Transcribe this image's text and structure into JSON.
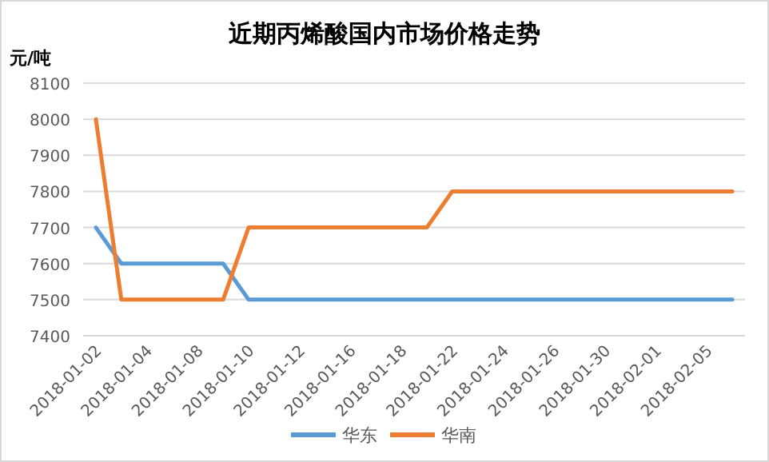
{
  "chart_data": {
    "type": "line",
    "title": "近期丙烯酸国内市场价格走势",
    "ylabel": "元/吨",
    "categories": [
      "2018-01-02",
      null,
      "2018-01-04",
      null,
      "2018-01-08",
      null,
      "2018-01-10",
      null,
      "2018-01-12",
      null,
      "2018-01-16",
      null,
      "2018-01-18",
      null,
      "2018-01-22",
      null,
      "2018-01-24",
      null,
      "2018-01-26",
      null,
      "2018-01-30",
      null,
      "2018-02-01",
      null,
      "2018-02-05",
      null
    ],
    "series": [
      {
        "name": "华东",
        "color": "#5b9bd5",
        "values": [
          7700,
          7600,
          7600,
          7600,
          7600,
          7600,
          7500,
          7500,
          7500,
          7500,
          7500,
          7500,
          7500,
          7500,
          7500,
          7500,
          7500,
          7500,
          7500,
          7500,
          7500,
          7500,
          7500,
          7500,
          7500,
          7500
        ]
      },
      {
        "name": "华南",
        "color": "#ed7d31",
        "values": [
          8000,
          7500,
          7500,
          7500,
          7500,
          7500,
          7700,
          7700,
          7700,
          7700,
          7700,
          7700,
          7700,
          7700,
          7800,
          7800,
          7800,
          7800,
          7800,
          7800,
          7800,
          7800,
          7800,
          7800,
          7800,
          7800
        ]
      }
    ],
    "ylim": [
      7400,
      8100
    ],
    "yticks": [
      7400,
      7500,
      7600,
      7700,
      7800,
      7900,
      8000,
      8100
    ],
    "grid": "y",
    "legend": "bottom",
    "marker": "none",
    "line_style": "solid"
  }
}
